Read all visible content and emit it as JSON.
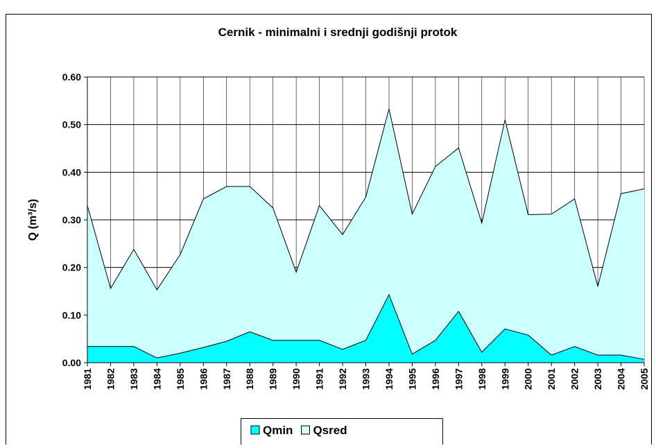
{
  "chart_data": {
    "type": "area",
    "title": "Cernik - minimalni i srednji godišnji protok",
    "ylabel": "Q (m³/s)",
    "categories": [
      "1981",
      "1982",
      "1983",
      "1984",
      "1985",
      "1986",
      "1987",
      "1988",
      "1989",
      "1990",
      "1991",
      "1992",
      "1993",
      "1994",
      "1995",
      "1996",
      "1997",
      "1998",
      "1999",
      "2000",
      "2001",
      "2002",
      "2003",
      "2004",
      "2005"
    ],
    "series": [
      {
        "name": "Qsred",
        "color": "#ccffff",
        "values": [
          0.33,
          0.156,
          0.238,
          0.153,
          0.227,
          0.344,
          0.37,
          0.37,
          0.325,
          0.19,
          0.33,
          0.269,
          0.348,
          0.533,
          0.312,
          0.412,
          0.451,
          0.293,
          0.51,
          0.311,
          0.312,
          0.344,
          0.16,
          0.355,
          0.365
        ]
      },
      {
        "name": "Qmin",
        "color": "#00ffff",
        "values": [
          0.034,
          0.034,
          0.034,
          0.01,
          0.02,
          0.032,
          0.045,
          0.065,
          0.047,
          0.047,
          0.047,
          0.028,
          0.047,
          0.143,
          0.018,
          0.047,
          0.108,
          0.022,
          0.071,
          0.058,
          0.016,
          0.034,
          0.016,
          0.016,
          0.007
        ]
      }
    ],
    "legend_order": [
      "Qmin",
      "Qsred"
    ],
    "ylim": [
      0,
      0.6
    ],
    "yticks": [
      {
        "value": 0,
        "label": "0.00"
      },
      {
        "value": 0.1,
        "label": "0.10"
      },
      {
        "value": 0.2,
        "label": "0.20"
      },
      {
        "value": 0.3,
        "label": "0.30"
      },
      {
        "value": 0.4,
        "label": "0.40"
      },
      {
        "value": 0.5,
        "label": "0.50"
      },
      {
        "value": 0.6,
        "label": "0.60"
      }
    ],
    "grid": true
  }
}
